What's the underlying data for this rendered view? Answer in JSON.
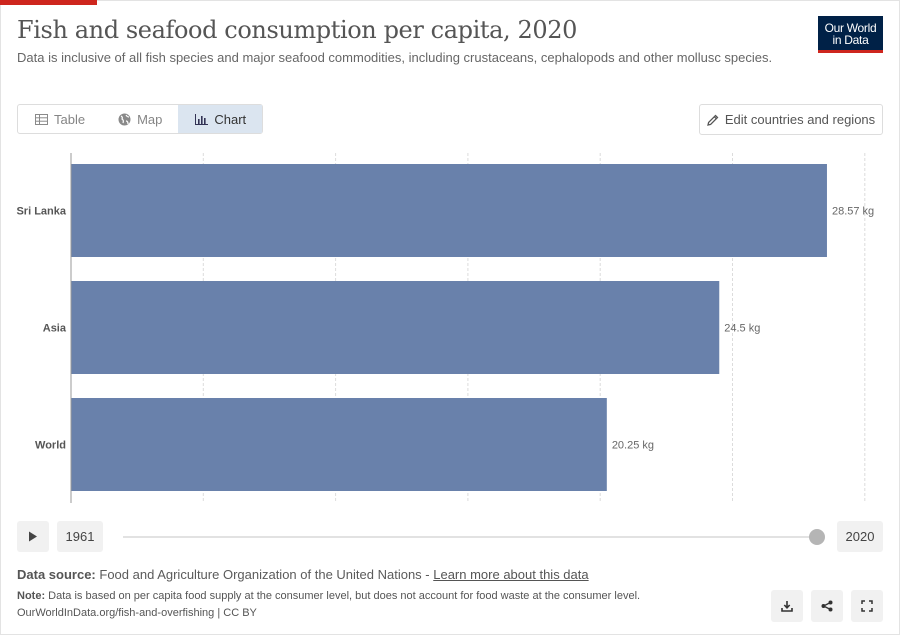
{
  "header": {
    "title": "Fish and seafood consumption per capita, 2020",
    "subtitle": "Data is inclusive of all fish species and major seafood commodities, including crustaceans, cephalopods and other mollusc species.",
    "logo_line1": "Our World",
    "logo_line2": "in Data"
  },
  "tabs": [
    {
      "label": "Table",
      "icon": "table-icon",
      "active": false
    },
    {
      "label": "Map",
      "icon": "globe-icon",
      "active": false
    },
    {
      "label": "Chart",
      "icon": "chart-icon",
      "active": true
    }
  ],
  "edit_button": {
    "label": "Edit countries and regions",
    "icon": "pencil-icon"
  },
  "chart_data": {
    "type": "bar",
    "orientation": "horizontal",
    "categories": [
      "Sri Lanka",
      "Asia",
      "World"
    ],
    "values": [
      28.57,
      24.5,
      20.25
    ],
    "value_labels": [
      "28.57 kg",
      "24.5 kg",
      "20.25 kg"
    ],
    "unit": "kg",
    "xlim": [
      0,
      30
    ],
    "grid": true,
    "bar_color": "#6981ab"
  },
  "timeline": {
    "start_year": "1961",
    "end_year": "2020",
    "play_icon": "play-icon"
  },
  "footer": {
    "source_label": "Data source:",
    "source_text": "Food and Agriculture Organization of the United Nations - ",
    "source_link": "Learn more about this data",
    "note_label": "Note:",
    "note_text": "Data is based on per capita food supply at the consumer level, but does not account for food waste at the consumer level.",
    "url_text": "OurWorldInData.org/fish-and-overfishing | CC BY"
  },
  "actions": [
    {
      "icon": "download-icon"
    },
    {
      "icon": "share-icon"
    },
    {
      "icon": "fullscreen-icon"
    }
  ]
}
